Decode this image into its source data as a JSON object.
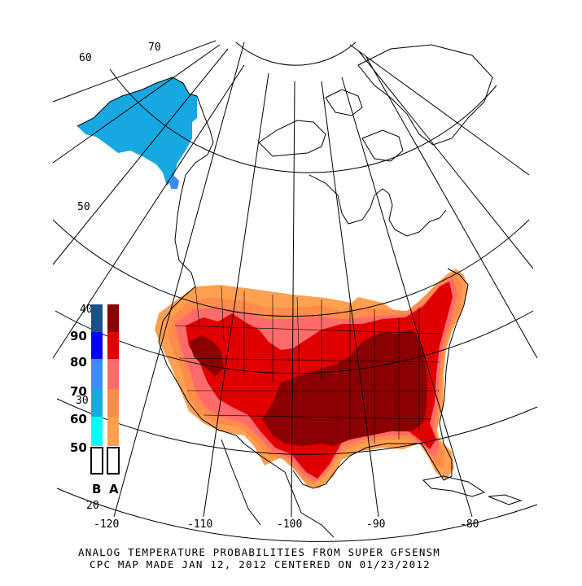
{
  "caption": {
    "line1": "ANALOG TEMPERATURE PROBABILITIES FROM SUPER GFSENSM",
    "line2": "CPC MAP MADE JAN 12, 2012 CENTERED ON 01/23/2012"
  },
  "latitude_labels": [
    "70",
    "60",
    "50",
    "40",
    "30",
    "20"
  ],
  "longitude_labels": [
    "-120",
    "-110",
    "-100",
    "-90",
    "-80"
  ],
  "legend": {
    "levels": [
      "90",
      "80",
      "70",
      "60",
      "50"
    ],
    "below": {
      "label": "B",
      "colors": [
        "#1b4f8c",
        "#0000ff",
        "#3b8cff",
        "#16a8e0",
        "#00ffff",
        "#ffffff"
      ]
    },
    "above": {
      "label": "A",
      "colors": [
        "#8b0000",
        "#e00000",
        "#ff6b6b",
        "#ff8c4a",
        "#ffa050",
        "#ffffff"
      ]
    }
  },
  "colors": {
    "above_50": "#ffa050",
    "above_60": "#ff8c4a",
    "above_70": "#ff6b6b",
    "above_80": "#e00000",
    "above_90": "#8b0000",
    "below_60": "#16a8e0",
    "below_70": "#3b8cff"
  }
}
